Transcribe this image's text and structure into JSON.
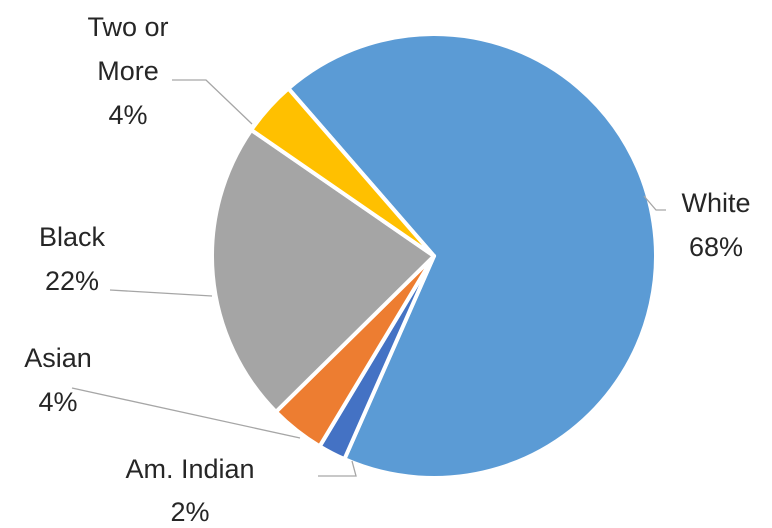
{
  "chart_data": {
    "type": "pie",
    "title": "",
    "start_angle_deg": 319,
    "direction": "clockwise",
    "legend": "none",
    "data_labels": "outside-with-leader-lines",
    "slices": [
      {
        "label": "White",
        "line2": "68%",
        "value": 68,
        "color": "#5b9bd5"
      },
      {
        "label": "Am. Indian",
        "line2": "2%",
        "value": 2,
        "color": "#4472c4"
      },
      {
        "label": "Asian",
        "line2": "4%",
        "value": 4,
        "color": "#ed7d31"
      },
      {
        "label": "Black",
        "line2": "22%",
        "value": 22,
        "color": "#a5a5a5"
      },
      {
        "label": "Two or More",
        "line1": "Two or",
        "line1b": "More",
        "line2": "4%",
        "value": 4,
        "color": "#ffc000"
      }
    ]
  }
}
